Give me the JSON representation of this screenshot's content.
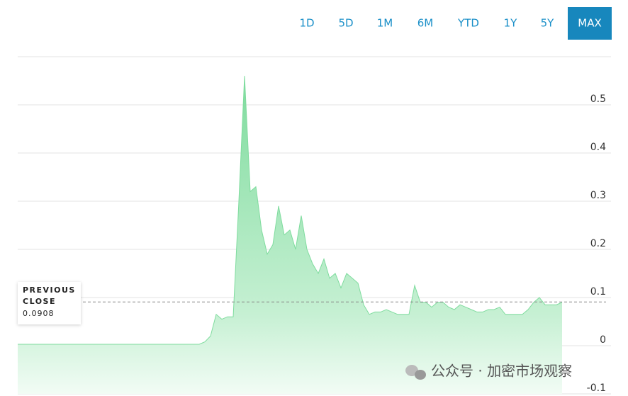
{
  "ranges": [
    "1D",
    "5D",
    "1M",
    "6M",
    "YTD",
    "1Y",
    "5Y",
    "MAX"
  ],
  "active": "MAX",
  "chart_data": {
    "type": "area",
    "color": "#7fdc9e",
    "values": [
      0.003,
      0.003,
      0.003,
      0.003,
      0.003,
      0.003,
      0.003,
      0.003,
      0.003,
      0.003,
      0.003,
      0.003,
      0.003,
      0.003,
      0.003,
      0.003,
      0.003,
      0.003,
      0.003,
      0.003,
      0.003,
      0.003,
      0.003,
      0.003,
      0.003,
      0.003,
      0.003,
      0.003,
      0.003,
      0.003,
      0.003,
      0.003,
      0.003,
      0.008,
      0.02,
      0.065,
      0.055,
      0.06,
      0.06,
      0.3,
      0.56,
      0.32,
      0.33,
      0.24,
      0.19,
      0.21,
      0.29,
      0.23,
      0.24,
      0.2,
      0.27,
      0.2,
      0.17,
      0.15,
      0.18,
      0.14,
      0.15,
      0.12,
      0.15,
      0.14,
      0.13,
      0.085,
      0.065,
      0.07,
      0.07,
      0.075,
      0.07,
      0.065,
      0.065,
      0.065,
      0.125,
      0.09,
      0.09,
      0.08,
      0.09,
      0.09,
      0.08,
      0.075,
      0.085,
      0.08,
      0.075,
      0.07,
      0.07,
      0.075,
      0.075,
      0.08,
      0.065,
      0.065,
      0.065,
      0.065,
      0.075,
      0.09,
      0.1,
      0.085,
      0.085,
      0.085,
      0.09
    ],
    "ylim": [
      -0.1,
      0.6
    ],
    "yticks": [
      -0.1,
      0,
      0.1,
      0.2,
      0.3,
      0.4,
      0.5
    ],
    "grid": true,
    "previous_close": {
      "label": [
        "PREVIOUS",
        "CLOSE"
      ],
      "value": 0.0908
    },
    "watermark": "公众号 · 加密市场观察"
  }
}
